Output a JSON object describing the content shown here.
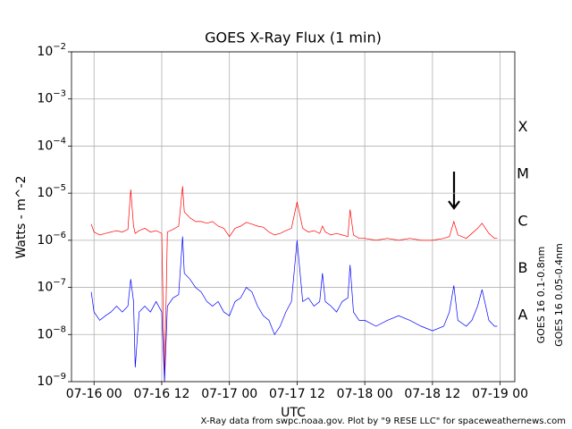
{
  "chart_data": {
    "type": "line",
    "title": "GOES X-Ray Flux (1 min)",
    "ylabel": "Watts - m^-2",
    "xlabel": "UTC",
    "footer": "X-Ray data from swpc.noaa.gov. Plot by \"9 RESE LLC\" for spaceweathernews.com",
    "log_y": true,
    "grid": true,
    "flare_classes": [
      "A",
      "B",
      "C",
      "M",
      "X"
    ],
    "ylim": [
      1e-09,
      0.01
    ],
    "yticks": [
      {
        "value": 1e-09,
        "label": "10−9"
      },
      {
        "value": 1e-08,
        "label": "10−8"
      },
      {
        "value": 1e-07,
        "label": "10−7"
      },
      {
        "value": 1e-06,
        "label": "10−6"
      },
      {
        "value": 1e-05,
        "label": "10−5"
      },
      {
        "value": 0.0001,
        "label": "10−4"
      },
      {
        "value": 0.001,
        "label": "10−3"
      },
      {
        "value": 0.01,
        "label": "10−2"
      }
    ],
    "xlim": [
      -4,
      74.6
    ],
    "xticks": [
      {
        "value": 0,
        "label": "07-16 00"
      },
      {
        "value": 12,
        "label": "07-16 12"
      },
      {
        "value": 24,
        "label": "07-17 00"
      },
      {
        "value": 36,
        "label": "07-17 12"
      },
      {
        "value": 48,
        "label": "07-18 00"
      },
      {
        "value": 60,
        "label": "07-18 12"
      },
      {
        "value": 72,
        "label": "07-19 00"
      }
    ],
    "x": [
      -0.5,
      0,
      1,
      2,
      3,
      4,
      5,
      6,
      6.5,
      7,
      7.3,
      8,
      9,
      10,
      11,
      12,
      12.5,
      13,
      14,
      15,
      15.7,
      16,
      17,
      18,
      19,
      20,
      21,
      22,
      23,
      24,
      25,
      26,
      27,
      28,
      29,
      30,
      31,
      32,
      33,
      34,
      35,
      36,
      37,
      38,
      39,
      40,
      40.5,
      41,
      42,
      43,
      44,
      45,
      45.4,
      46,
      47,
      48,
      50,
      52,
      54,
      56,
      58,
      60,
      62,
      63,
      63.8,
      64.5,
      66,
      67,
      68,
      68.8,
      70,
      71,
      71.5
    ],
    "series": [
      {
        "name": "GOES 16 0.1-0.8nm",
        "color": "#ff0000",
        "values": [
          2.2e-06,
          1.5e-06,
          1.3e-06,
          1.4e-06,
          1.5e-06,
          1.6e-06,
          1.5e-06,
          1.7e-06,
          1.2e-05,
          2e-06,
          1.4e-06,
          1.6e-06,
          1.8e-06,
          1.5e-06,
          1.6e-06,
          1.4e-06,
          1e-09,
          1.5e-06,
          1.7e-06,
          2e-06,
          1.4e-05,
          4e-06,
          3e-06,
          2.5e-06,
          2.5e-06,
          2.3e-06,
          2.5e-06,
          2e-06,
          1.8e-06,
          1.2e-06,
          1.8e-06,
          2e-06,
          2.4e-06,
          2.2e-06,
          2e-06,
          1.9e-06,
          1.5e-06,
          1.3e-06,
          1.4e-06,
          1.6e-06,
          1.8e-06,
          6.5e-06,
          1.8e-06,
          1.5e-06,
          1.6e-06,
          1.4e-06,
          2e-06,
          1.5e-06,
          1.3e-06,
          1.4e-06,
          1.3e-06,
          1.2e-06,
          4.5e-06,
          1.3e-06,
          1.1e-06,
          1.1e-06,
          1e-06,
          1.1e-06,
          1e-06,
          1.1e-06,
          1e-06,
          1e-06,
          1.1e-06,
          1.2e-06,
          2.5e-06,
          1.3e-06,
          1.1e-06,
          1.4e-06,
          1.8e-06,
          2.3e-06,
          1.4e-06,
          1.1e-06,
          1.1e-06
        ]
      },
      {
        "name": "GOES 16 0.05-0.4nm",
        "color": "#0000ff",
        "values": [
          8e-08,
          3e-08,
          2e-08,
          2.5e-08,
          3e-08,
          4e-08,
          3e-08,
          4e-08,
          1.5e-07,
          5e-08,
          2e-09,
          3e-08,
          4e-08,
          3e-08,
          5e-08,
          3e-08,
          1e-09,
          4e-08,
          6e-08,
          7e-08,
          1.2e-06,
          2e-07,
          1.5e-07,
          1e-07,
          8e-08,
          5e-08,
          4e-08,
          5e-08,
          3e-08,
          2.5e-08,
          5e-08,
          6e-08,
          1e-07,
          8e-08,
          4e-08,
          2.5e-08,
          2e-08,
          1e-08,
          1.5e-08,
          3e-08,
          5e-08,
          1e-06,
          5e-08,
          6e-08,
          4e-08,
          5e-08,
          2e-07,
          5e-08,
          4e-08,
          3e-08,
          5e-08,
          6e-08,
          3e-07,
          3e-08,
          2e-08,
          2e-08,
          1.5e-08,
          2e-08,
          2.5e-08,
          2e-08,
          1.5e-08,
          1.2e-08,
          1.5e-08,
          3e-08,
          1.1e-07,
          2e-08,
          1.5e-08,
          2e-08,
          4e-08,
          9e-08,
          2e-08,
          1.5e-08,
          1.5e-08
        ]
      }
    ]
  }
}
